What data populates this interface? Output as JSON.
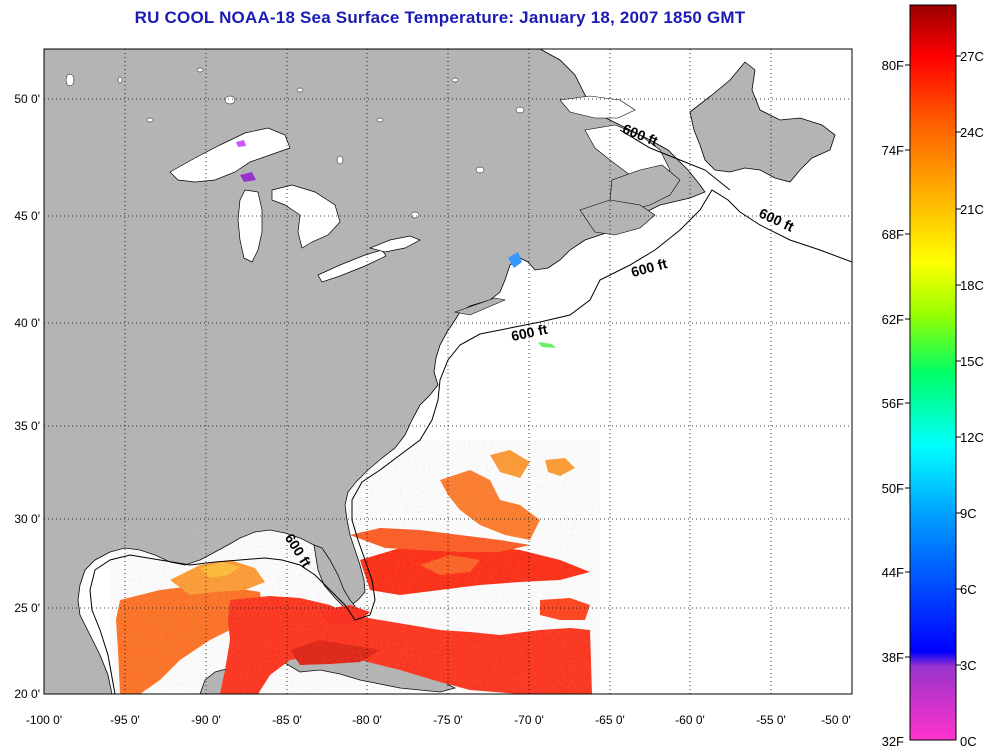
{
  "title": "RU COOL  NOAA-18  Sea Surface Temperature:  January 18, 2007 1850 GMT",
  "map": {
    "lon_range": [
      -100,
      -50
    ],
    "lat_range": [
      20,
      52.5
    ],
    "lon_labels": [
      "-100 0'",
      "-95 0'",
      "-90 0'",
      "-85 0'",
      "-80 0'",
      "-75 0'",
      "-70 0'",
      "-65 0'",
      "-60 0'",
      "-55 0'",
      "-50 0'"
    ],
    "lat_labels": [
      "20 0'",
      "25 0'",
      "30 0'",
      "35 0'",
      "40 0'",
      "45 0'",
      "50 0'"
    ],
    "land_color": "#b4b4b4",
    "ocean_color": "#ffffff",
    "grid": "dotted",
    "contour_labels": [
      "600 ft",
      "600 ft",
      "600 ft",
      "600 ft",
      "600 ft"
    ]
  },
  "colorbar": {
    "fahrenheit_labels": [
      "80F",
      "74F",
      "68F",
      "62F",
      "56F",
      "50F",
      "44F",
      "38F",
      "32F"
    ],
    "celsius_labels": [
      "27C",
      "24C",
      "21C",
      "18C",
      "15C",
      "12C",
      "9C",
      "6C",
      "3C",
      "0C"
    ],
    "colors": [
      "#ff33cc",
      "#9933cc",
      "#0000ff",
      "#0099ff",
      "#00ffff",
      "#00ff66",
      "#99ff00",
      "#ffff00",
      "#ffaa00",
      "#ff5500",
      "#ff0000",
      "#990000"
    ]
  }
}
